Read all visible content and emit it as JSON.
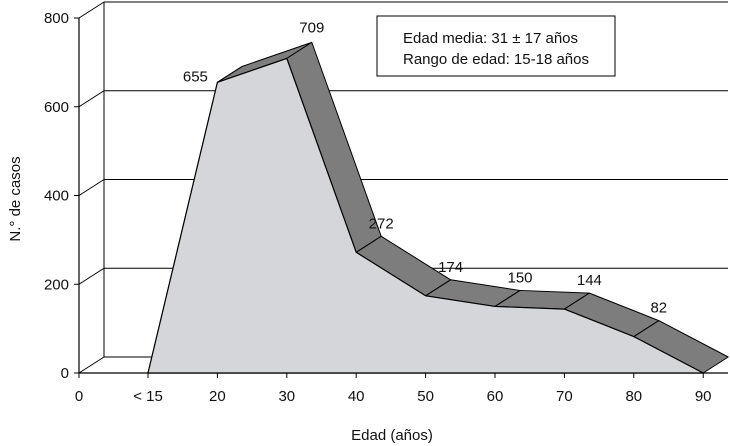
{
  "chart_data": {
    "type": "area",
    "title": "",
    "xlabel": "Edad (años)",
    "ylabel": "N.° de casos",
    "x_tick_labels": [
      "0",
      "< 15",
      "20",
      "30",
      "40",
      "50",
      "60",
      "70",
      "80",
      "90"
    ],
    "y_tick_labels": [
      "0",
      "200",
      "400",
      "600",
      "800"
    ],
    "ylim": [
      0,
      800
    ],
    "grid": true,
    "style": "3d",
    "x": [
      "< 15",
      "20",
      "30",
      "40",
      "50",
      "60",
      "70",
      "80",
      "90"
    ],
    "values": [
      0,
      655,
      709,
      272,
      174,
      150,
      144,
      82,
      0
    ],
    "data_labels": [
      {
        "x": "20",
        "text": "655"
      },
      {
        "x": "30",
        "text": "709"
      },
      {
        "x": "40",
        "text": "272"
      },
      {
        "x": "50",
        "text": "174"
      },
      {
        "x": "60",
        "text": "150"
      },
      {
        "x": "70",
        "text": "144"
      },
      {
        "x": "80",
        "text": "82"
      }
    ],
    "info_box": [
      "Edad media: 31 ± 17 años",
      "Rango de edad: 15-18 años"
    ],
    "colors": {
      "face": "#d4d6d9",
      "depth": "#7d7d7d",
      "line": "#000000"
    }
  }
}
